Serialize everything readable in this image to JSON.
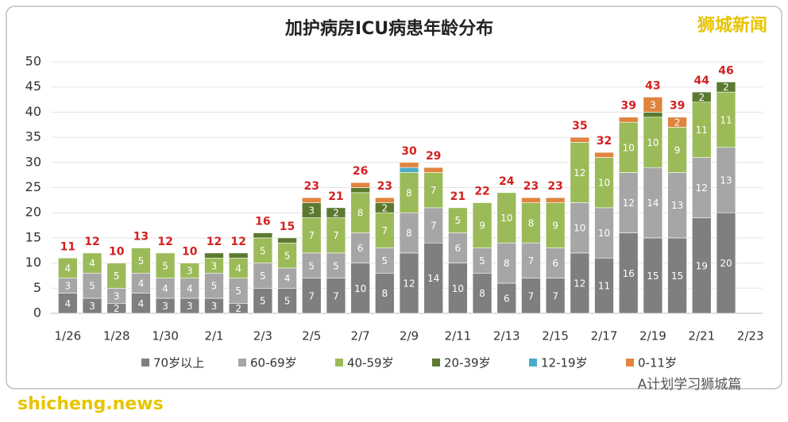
{
  "chart_data": {
    "type": "stacked-bar",
    "title": "加护病房ICU病患年龄分布",
    "categories": [
      "1/26",
      null,
      "1/28",
      null,
      "1/30",
      null,
      "2/1",
      null,
      "2/3",
      null,
      "2/5",
      null,
      "2/7",
      null,
      "2/9",
      null,
      "2/11",
      null,
      "2/13",
      null,
      "2/15",
      null,
      "2/17",
      null,
      "2/19",
      null,
      "2/21",
      null,
      "2/23"
    ],
    "series": [
      {
        "name": "70岁以上",
        "color": "#7f7f80",
        "values": [
          4,
          3,
          2,
          4,
          3,
          3,
          3,
          2,
          5,
          5,
          7,
          7,
          10,
          8,
          12,
          14,
          10,
          8,
          6,
          7,
          7,
          12,
          11,
          16,
          15,
          15,
          19,
          20,
          null
        ]
      },
      {
        "name": "60-69岁",
        "color": "#a6a6a6",
        "values": [
          3,
          5,
          3,
          4,
          4,
          4,
          5,
          5,
          5,
          4,
          5,
          5,
          6,
          5,
          8,
          7,
          6,
          5,
          8,
          7,
          6,
          10,
          10,
          12,
          14,
          13,
          12,
          13,
          null
        ]
      },
      {
        "name": "40-59岁",
        "color": "#9bbb59",
        "values": [
          4,
          4,
          5,
          5,
          5,
          3,
          3,
          4,
          5,
          5,
          7,
          7,
          8,
          7,
          8,
          7,
          5,
          9,
          10,
          8,
          9,
          12,
          10,
          10,
          10,
          9,
          11,
          11,
          null
        ]
      },
      {
        "name": "20-39岁",
        "color": "#5b7a2f",
        "values": [
          0,
          0,
          0,
          0,
          0,
          0,
          1,
          1,
          1,
          1,
          3,
          2,
          1,
          2,
          0,
          0,
          0,
          0,
          0,
          0,
          0,
          0,
          0,
          0,
          1,
          0,
          2,
          2,
          null
        ]
      },
      {
        "name": "12-19岁",
        "color": "#4bacc6",
        "values": [
          0,
          0,
          0,
          0,
          0,
          0,
          0,
          0,
          0,
          0,
          0,
          0,
          0,
          0,
          1,
          0,
          0,
          0,
          0,
          0,
          0,
          0,
          0,
          0,
          0,
          0,
          0,
          0,
          null
        ]
      },
      {
        "name": "0-11岁",
        "color": "#e0843e",
        "values": [
          0,
          0,
          0,
          0,
          0,
          0,
          0,
          0,
          0,
          0,
          1,
          0,
          1,
          1,
          1,
          1,
          0,
          0,
          0,
          1,
          1,
          1,
          1,
          1,
          3,
          2,
          0,
          0,
          null
        ]
      }
    ],
    "totals": [
      11,
      12,
      10,
      13,
      12,
      10,
      12,
      12,
      16,
      15,
      23,
      21,
      26,
      23,
      30,
      29,
      21,
      22,
      24,
      23,
      23,
      35,
      32,
      39,
      43,
      39,
      44,
      46,
      null
    ],
    "totals_color": "#d42020",
    "ylim": [
      0,
      50
    ],
    "yticks": [
      0,
      5,
      10,
      15,
      20,
      25,
      30,
      35,
      40,
      45,
      50
    ],
    "grid": true,
    "legend": "bottom",
    "watermarks": [
      "狮城新闻",
      "A计划学习狮城篇",
      "shicheng.news"
    ]
  }
}
